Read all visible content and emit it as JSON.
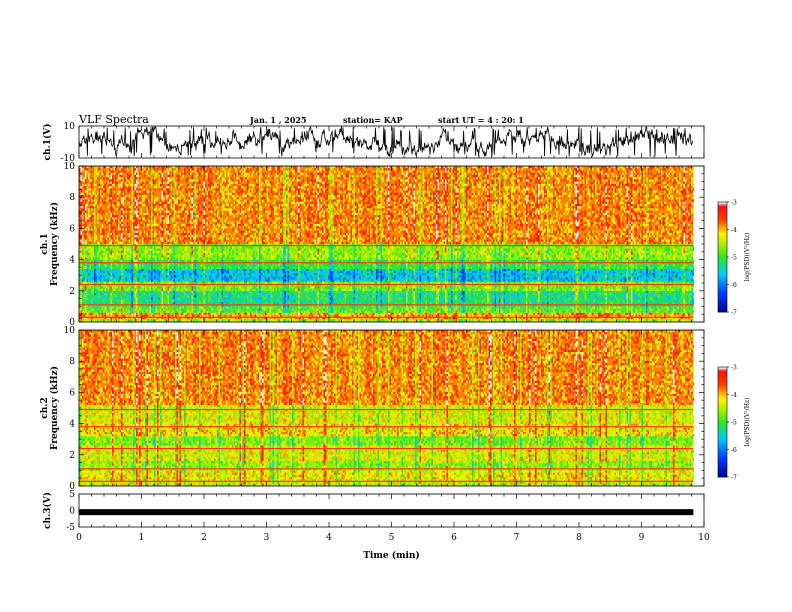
{
  "header": {
    "title": "VLF Spectra",
    "date": "Jan. 1 , 2025",
    "station": "station= KAP",
    "start_ut": "start UT =  4 : 20: 1"
  },
  "chart_data": [
    {
      "type": "line",
      "panel": "ch1-waveform",
      "ylabel": "ch.1(V)",
      "ylim": [
        -10,
        10
      ],
      "yticks": [
        "10",
        "-10"
      ],
      "xlim": [
        0,
        10
      ],
      "series": [
        {
          "color": "#000000"
        }
      ]
    },
    {
      "type": "heatmap",
      "panel": "ch1-spectrogram",
      "ylabel": "ch.1\nFrequency (kHz)",
      "ylim": [
        0,
        10
      ],
      "yticks": [
        "0",
        "2",
        "4",
        "6",
        "8",
        "10"
      ],
      "xlim": [
        0,
        10
      ],
      "data_end_min": 9.83,
      "bands": [
        {
          "range_khz": [
            0.0,
            0.2
          ],
          "level": -4.5
        },
        {
          "range_khz": [
            0.2,
            0.6
          ],
          "level": -3.9
        },
        {
          "range_khz": [
            0.6,
            1.0
          ],
          "level": -4.8
        },
        {
          "range_khz": [
            1.0,
            2.0
          ],
          "level": -5.2
        },
        {
          "range_khz": [
            2.0,
            2.6
          ],
          "level": -4.7
        },
        {
          "range_khz": [
            2.6,
            3.4
          ],
          "level": -5.6
        },
        {
          "range_khz": [
            3.4,
            4.0
          ],
          "level": -5.0
        },
        {
          "range_khz": [
            4.0,
            5.0
          ],
          "level": -4.6
        },
        {
          "range_khz": [
            5.0,
            10.0
          ],
          "level": -3.8
        }
      ],
      "colorbar": {
        "label": "log(PSD)(V²/Hz)",
        "range": [
          -7,
          -3
        ],
        "ticks": [
          "-3",
          "-4",
          "-5",
          "-6",
          "-7"
        ]
      }
    },
    {
      "type": "heatmap",
      "panel": "ch2-spectrogram",
      "ylabel": "ch.2\nFrequency (kHz)",
      "ylim": [
        0,
        10
      ],
      "yticks": [
        "0",
        "2",
        "4",
        "6",
        "8",
        "10"
      ],
      "xlim": [
        0,
        10
      ],
      "data_end_min": 9.83,
      "bands": [
        {
          "range_khz": [
            0.0,
            0.3
          ],
          "level": -4.4
        },
        {
          "range_khz": [
            0.3,
            1.0
          ],
          "level": -4.2
        },
        {
          "range_khz": [
            1.0,
            1.6
          ],
          "level": -4.6
        },
        {
          "range_khz": [
            1.6,
            2.6
          ],
          "level": -4.3
        },
        {
          "range_khz": [
            2.6,
            3.2
          ],
          "level": -4.7
        },
        {
          "range_khz": [
            3.2,
            4.0
          ],
          "level": -4.1
        },
        {
          "range_khz": [
            4.0,
            5.2
          ],
          "level": -4.3
        },
        {
          "range_khz": [
            5.2,
            10.0
          ],
          "level": -3.8
        }
      ],
      "colorbar": {
        "label": "log(PSD)(V²/Hz)",
        "range": [
          -7,
          -3
        ],
        "ticks": [
          "-3",
          "-4",
          "-5",
          "-6",
          "-7"
        ]
      }
    },
    {
      "type": "line",
      "panel": "ch3-waveform",
      "ylabel": "ch.3(V)",
      "ylim": [
        -5,
        5
      ],
      "yticks": [
        "5",
        "0",
        "-5"
      ],
      "xlim": [
        0,
        10
      ],
      "xlabel": "Time (min)",
      "xticks": [
        "0",
        "1",
        "2",
        "3",
        "4",
        "5",
        "6",
        "7",
        "8",
        "9",
        "10"
      ],
      "series": [
        {
          "color": "#000000",
          "mean_value": -0.5
        }
      ]
    }
  ]
}
